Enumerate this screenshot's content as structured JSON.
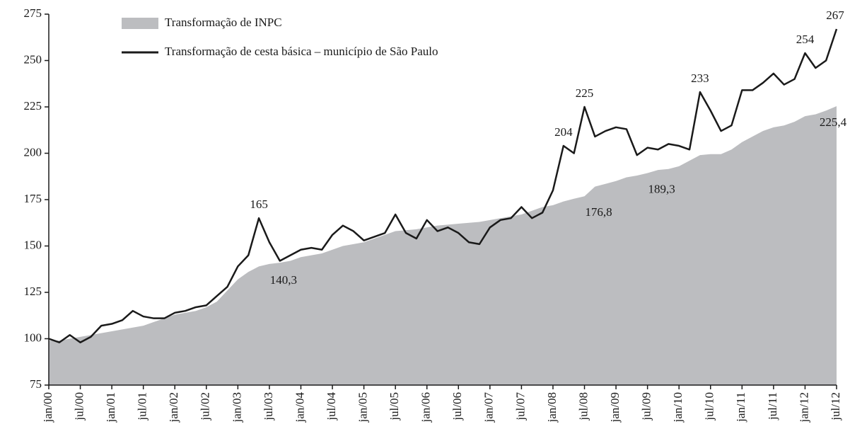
{
  "chart_data": {
    "type": "line",
    "categories": [
      "jan/00",
      null,
      null,
      "jul/00",
      null,
      null,
      "jan/01",
      null,
      null,
      "jul/01",
      null,
      null,
      "jan/02",
      null,
      null,
      "jul/02",
      null,
      null,
      "jan/03",
      null,
      null,
      "jul/03",
      null,
      null,
      "jan/04",
      null,
      null,
      "jul/04",
      null,
      null,
      "jan/05",
      null,
      null,
      "jul/05",
      null,
      null,
      "jan/06",
      null,
      null,
      "jul/06",
      null,
      null,
      "jan/07",
      null,
      null,
      "jul/07",
      null,
      null,
      "jan/08",
      null,
      null,
      "jul/08",
      null,
      null,
      "jan/09",
      null,
      null,
      "jul/09",
      null,
      null,
      "jan/10",
      null,
      null,
      "jul/10",
      null,
      null,
      "jan/11",
      null,
      null,
      "jul/11",
      null,
      null,
      "jan/12",
      null,
      null,
      "jul/12"
    ],
    "series": [
      {
        "name": "Transformação de INPC",
        "color": "#bcbdc0",
        "style": "area",
        "values": [
          99,
          99,
          100,
          101,
          102,
          103,
          104,
          105,
          106,
          107,
          109,
          111,
          113,
          114,
          115,
          117,
          120,
          126,
          132,
          136,
          139,
          140.3,
          141,
          142,
          144,
          145,
          146,
          148,
          150,
          151,
          152,
          154,
          156,
          158,
          158.5,
          159,
          160,
          161,
          161.5,
          162,
          162.5,
          163,
          164,
          165,
          166,
          167,
          169,
          171,
          172,
          174,
          175.5,
          176.8,
          182,
          183.5,
          185,
          187,
          188,
          189.3,
          191,
          191.5,
          193,
          196,
          199,
          199.5,
          199.5,
          202,
          206,
          209,
          212,
          214,
          215,
          217,
          220,
          221,
          223,
          225.4
        ],
        "value_labels": [
          null,
          null,
          null,
          null,
          null,
          null,
          null,
          null,
          null,
          null,
          null,
          null,
          null,
          null,
          null,
          null,
          null,
          null,
          null,
          null,
          null,
          "140,3",
          null,
          null,
          null,
          null,
          null,
          null,
          null,
          null,
          null,
          null,
          null,
          null,
          null,
          null,
          null,
          null,
          null,
          null,
          null,
          null,
          null,
          null,
          null,
          null,
          null,
          null,
          null,
          null,
          null,
          "176,8",
          null,
          null,
          null,
          null,
          null,
          "189,3",
          null,
          null,
          null,
          null,
          null,
          null,
          null,
          null,
          null,
          null,
          null,
          null,
          null,
          null,
          null,
          null,
          null,
          "225,4"
        ]
      },
      {
        "name": "Transformação de cesta básica – município de São Paulo",
        "color": "#1a1a1a",
        "style": "line",
        "values": [
          100,
          98,
          102,
          98,
          101,
          107,
          108,
          110,
          115,
          112,
          111,
          111,
          114,
          115,
          117,
          118,
          123,
          128,
          139,
          145,
          165,
          152,
          142,
          145,
          148,
          149,
          148,
          156,
          161,
          158,
          153,
          155,
          157,
          167,
          157,
          154,
          164,
          158,
          160,
          157,
          152,
          151,
          160,
          164,
          165,
          171,
          165,
          168,
          180,
          204,
          200,
          225,
          209,
          212,
          214,
          213,
          199,
          203,
          202,
          205,
          204,
          202,
          233,
          223,
          212,
          215,
          234,
          234,
          238,
          243,
          237,
          240,
          254,
          246,
          250,
          267
        ],
        "value_labels": [
          null,
          null,
          null,
          null,
          null,
          null,
          null,
          null,
          null,
          null,
          null,
          null,
          null,
          null,
          null,
          null,
          null,
          null,
          null,
          null,
          "165",
          null,
          null,
          null,
          null,
          null,
          null,
          null,
          null,
          null,
          null,
          null,
          null,
          null,
          null,
          null,
          null,
          null,
          null,
          null,
          null,
          null,
          null,
          null,
          null,
          null,
          null,
          null,
          null,
          "204",
          null,
          "225",
          null,
          null,
          null,
          null,
          null,
          null,
          null,
          null,
          null,
          null,
          "233",
          null,
          null,
          null,
          null,
          null,
          null,
          null,
          null,
          null,
          "254",
          null,
          null,
          "267"
        ]
      }
    ],
    "ylim": [
      75,
      275
    ],
    "yticks": [
      75,
      100,
      125,
      150,
      175,
      200,
      225,
      250,
      275
    ],
    "grid": false,
    "legend": "top-left"
  }
}
